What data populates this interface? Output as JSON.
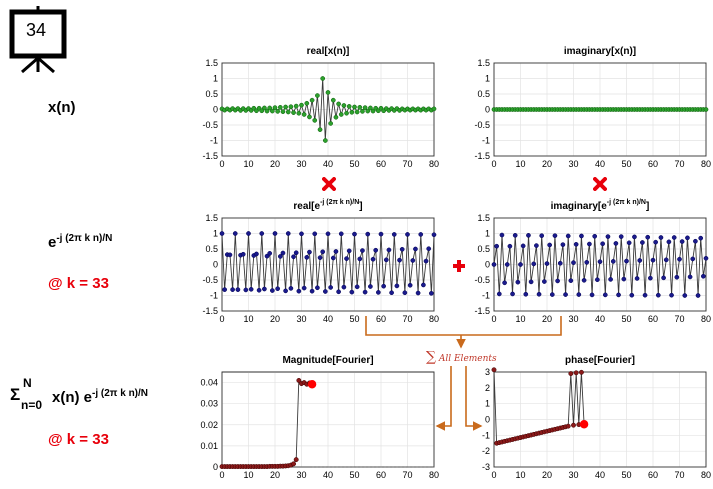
{
  "slide": {
    "number": "34"
  },
  "labels": {
    "xn": "x(n)",
    "kernel_base": "e",
    "kernel_sup": "-j (2π k n)/N",
    "k_value_1": "@ k = 33",
    "sum_sigma": "Σ",
    "sum_top": "N",
    "sum_bottom": "n=0",
    "sum_body": "x(n) e",
    "sum_sup": "-j (2π k n)/N",
    "k_value_2": "@ k = 33",
    "all_elements": "All Elements"
  },
  "colors": {
    "green_marker": "#2ca02c",
    "blue_marker": "#1a1a8c",
    "dark_red_marker": "#8b1a1a",
    "highlight": "#ff0000",
    "arrow": "#c96a1c",
    "operator_red": "#e8000b"
  },
  "icons": {
    "multiply": "x-mark-icon",
    "plus": "plus-icon",
    "slide": "presentation-board-icon"
  },
  "chart_data": [
    {
      "id": "real_x",
      "type": "line",
      "title": "real[x(n)]",
      "xlim": [
        0,
        80
      ],
      "ylim": [
        -1.5,
        1.5
      ],
      "xticks": [
        "0",
        "10",
        "20",
        "30",
        "40",
        "50",
        "60",
        "70",
        "80"
      ],
      "yticks": [
        "1.5",
        "1",
        "0.5",
        "0",
        "-0.5",
        "-1",
        "-1.5"
      ],
      "marker": "green",
      "x": [
        0,
        1,
        2,
        3,
        4,
        5,
        6,
        7,
        8,
        9,
        10,
        11,
        12,
        13,
        14,
        15,
        16,
        17,
        18,
        19,
        20,
        21,
        22,
        23,
        24,
        25,
        26,
        27,
        28,
        29,
        30,
        31,
        32,
        33,
        34,
        35,
        36,
        37,
        38,
        39,
        40,
        41,
        42,
        43,
        44,
        45,
        46,
        47,
        48,
        49,
        50,
        51,
        52,
        53,
        54,
        55,
        56,
        57,
        58,
        59,
        60,
        61,
        62,
        63,
        64,
        65,
        66,
        67,
        68,
        69,
        70,
        71,
        72,
        73,
        74,
        75,
        76,
        77,
        78,
        79,
        80
      ],
      "y": [
        0.02,
        -0.02,
        0.02,
        -0.02,
        0.03,
        -0.02,
        0.03,
        -0.03,
        0.03,
        -0.03,
        0.03,
        -0.03,
        0.04,
        -0.04,
        0.04,
        -0.04,
        0.05,
        -0.05,
        0.05,
        -0.05,
        0.06,
        -0.06,
        0.07,
        -0.07,
        0.08,
        -0.08,
        0.09,
        -0.1,
        0.11,
        -0.12,
        0.14,
        -0.16,
        0.2,
        -0.24,
        0.3,
        -0.35,
        0.45,
        -0.65,
        1.0,
        -1.0,
        0.55,
        -0.45,
        0.3,
        -0.25,
        0.18,
        -0.16,
        0.13,
        -0.12,
        0.1,
        -0.09,
        0.08,
        -0.08,
        0.07,
        -0.06,
        0.06,
        -0.05,
        0.05,
        -0.05,
        0.04,
        -0.04,
        0.04,
        -0.04,
        0.03,
        -0.03,
        0.03,
        -0.03,
        0.03,
        -0.03,
        0.02,
        -0.02,
        0.02,
        -0.02,
        0.02,
        -0.02,
        0.02,
        -0.02,
        0.02,
        -0.02,
        0.02,
        -0.02,
        0.02
      ]
    },
    {
      "id": "imag_x",
      "type": "line",
      "title": "imaginary[x(n)]",
      "xlim": [
        0,
        80
      ],
      "ylim": [
        -1.5,
        1.5
      ],
      "xticks": [
        "0",
        "10",
        "20",
        "30",
        "40",
        "50",
        "60",
        "70",
        "80"
      ],
      "yticks": [
        "1.5",
        "1",
        "0.5",
        "0",
        "-0.5",
        "-1",
        "-1.5"
      ],
      "marker": "green",
      "x": [
        0,
        1,
        2,
        3,
        4,
        5,
        6,
        7,
        8,
        9,
        10,
        11,
        12,
        13,
        14,
        15,
        16,
        17,
        18,
        19,
        20,
        21,
        22,
        23,
        24,
        25,
        26,
        27,
        28,
        29,
        30,
        31,
        32,
        33,
        34,
        35,
        36,
        37,
        38,
        39,
        40,
        41,
        42,
        43,
        44,
        45,
        46,
        47,
        48,
        49,
        50,
        51,
        52,
        53,
        54,
        55,
        56,
        57,
        58,
        59,
        60,
        61,
        62,
        63,
        64,
        65,
        66,
        67,
        68,
        69,
        70,
        71,
        72,
        73,
        74,
        75,
        76,
        77,
        78,
        79,
        80
      ],
      "y": [
        0,
        0,
        0,
        0,
        0,
        0,
        0,
        0,
        0,
        0,
        0,
        0,
        0,
        0,
        0,
        0,
        0,
        0,
        0,
        0,
        0,
        0,
        0,
        0,
        0,
        0,
        0,
        0,
        0,
        0,
        0,
        0,
        0,
        0,
        0,
        0,
        0,
        0,
        0,
        0,
        0,
        0,
        0,
        0,
        0,
        0,
        0,
        0,
        0,
        0,
        0,
        0,
        0,
        0,
        0,
        0,
        0,
        0,
        0,
        0,
        0,
        0,
        0,
        0,
        0,
        0,
        0,
        0,
        0,
        0,
        0,
        0,
        0,
        0,
        0,
        0,
        0,
        0,
        0,
        0,
        0
      ]
    },
    {
      "id": "real_kernel",
      "type": "line",
      "title_base": "real[e",
      "title_sup": "-j (2π k n)/N",
      "title_end": "]",
      "xlim": [
        0,
        80
      ],
      "ylim": [
        -1.5,
        1.5
      ],
      "xticks": [
        "0",
        "10",
        "20",
        "30",
        "40",
        "50",
        "60",
        "70",
        "80"
      ],
      "yticks": [
        "1.5",
        "1",
        "0.5",
        "0",
        "-0.5",
        "-1",
        "-1.5"
      ],
      "marker": "blue",
      "x": [
        0,
        1,
        2,
        3,
        4,
        5,
        6,
        7,
        8,
        9,
        10,
        11,
        12,
        13,
        14,
        15,
        16,
        17,
        18,
        19,
        20,
        21,
        22,
        23,
        24,
        25,
        26,
        27,
        28,
        29,
        30,
        31,
        32,
        33,
        34,
        35,
        36,
        37,
        38,
        39,
        40,
        41,
        42,
        43,
        44,
        45,
        46,
        47,
        48,
        49,
        50,
        51,
        52,
        53,
        54,
        55,
        56,
        57,
        58,
        59,
        60,
        61,
        62,
        63,
        64,
        65,
        66,
        67,
        68,
        69,
        70,
        71,
        72,
        73,
        74,
        75,
        76,
        77,
        78,
        79,
        80
      ],
      "y": [
        1,
        -0.81,
        0.32,
        0.31,
        -0.81,
        1,
        -0.81,
        0.3,
        0.33,
        -0.82,
        1,
        -0.8,
        0.29,
        0.34,
        -0.83,
        1,
        -0.79,
        0.27,
        0.36,
        -0.84,
        1,
        -0.78,
        0.26,
        0.37,
        -0.85,
        1,
        -0.77,
        0.25,
        0.38,
        -0.86,
        0.99,
        -0.76,
        0.23,
        0.4,
        -0.86,
        0.99,
        -0.75,
        0.22,
        0.41,
        -0.87,
        0.99,
        -0.74,
        0.21,
        0.42,
        -0.88,
        0.99,
        -0.73,
        0.19,
        0.44,
        -0.89,
        0.98,
        -0.72,
        0.18,
        0.45,
        -0.89,
        0.98,
        -0.71,
        0.17,
        0.46,
        -0.9,
        0.98,
        -0.7,
        0.15,
        0.47,
        -0.91,
        0.97,
        -0.69,
        0.14,
        0.49,
        -0.91,
        0.97,
        -0.67,
        0.13,
        0.5,
        -0.92,
        0.97,
        -0.66,
        0.11,
        0.51,
        -0.93,
        0.96
      ]
    },
    {
      "id": "imag_kernel",
      "type": "line",
      "title_base": "imaginary[e",
      "title_sup": "-j (2π k n)/N",
      "title_end": "]",
      "xlim": [
        0,
        80
      ],
      "ylim": [
        -1.5,
        1.5
      ],
      "xticks": [
        "0",
        "10",
        "20",
        "30",
        "40",
        "50",
        "60",
        "70",
        "80"
      ],
      "yticks": [
        "1.5",
        "1",
        "0.5",
        "0",
        "-0.5",
        "-1",
        "-1.5"
      ],
      "marker": "blue",
      "x": [
        0,
        1,
        2,
        3,
        4,
        5,
        6,
        7,
        8,
        9,
        10,
        11,
        12,
        13,
        14,
        15,
        16,
        17,
        18,
        19,
        20,
        21,
        22,
        23,
        24,
        25,
        26,
        27,
        28,
        29,
        30,
        31,
        32,
        33,
        34,
        35,
        36,
        37,
        38,
        39,
        40,
        41,
        42,
        43,
        44,
        45,
        46,
        47,
        48,
        49,
        50,
        51,
        52,
        53,
        54,
        55,
        56,
        57,
        58,
        59,
        60,
        61,
        62,
        63,
        64,
        65,
        66,
        67,
        68,
        69,
        70,
        71,
        72,
        73,
        74,
        75,
        76,
        77,
        78,
        79,
        80
      ],
      "y": [
        0,
        0.59,
        -0.95,
        0.95,
        -0.59,
        0,
        0.59,
        -0.95,
        0.94,
        -0.57,
        0,
        0.6,
        -0.96,
        0.94,
        -0.56,
        0.02,
        0.61,
        -0.96,
        0.93,
        -0.55,
        0.03,
        0.63,
        -0.97,
        0.93,
        -0.53,
        0.04,
        0.64,
        -0.97,
        0.92,
        -0.52,
        0.06,
        0.65,
        -0.97,
        0.92,
        -0.51,
        0.07,
        0.66,
        -0.98,
        0.91,
        -0.49,
        0.09,
        0.67,
        -0.98,
        0.9,
        -0.48,
        0.1,
        0.68,
        -0.98,
        0.9,
        -0.47,
        0.11,
        0.7,
        -0.99,
        0.89,
        -0.45,
        0.13,
        0.71,
        -0.99,
        0.88,
        -0.44,
        0.14,
        0.72,
        -0.99,
        0.87,
        -0.43,
        0.15,
        0.73,
        -0.99,
        0.87,
        -0.41,
        0.17,
        0.74,
        -1,
        0.86,
        -0.4,
        0.18,
        0.75,
        -1,
        0.85,
        -0.38,
        0.2
      ]
    },
    {
      "id": "magnitude",
      "type": "line",
      "title": "Magnitude[Fourier]",
      "xlim": [
        0,
        80
      ],
      "ylim": [
        0,
        0.045
      ],
      "xticks": [
        "0",
        "10",
        "20",
        "30",
        "40",
        "50",
        "60",
        "70",
        "80"
      ],
      "yticks": [
        "0.04",
        "0.03",
        "0.02",
        "0.01",
        "0"
      ],
      "ytick_values": [
        0.04,
        0.03,
        0.02,
        0.01,
        0
      ],
      "marker": "darkred",
      "highlight": {
        "x": 34,
        "y": 0.0392
      },
      "x": [
        0,
        1,
        2,
        3,
        4,
        5,
        6,
        7,
        8,
        9,
        10,
        11,
        12,
        13,
        14,
        15,
        16,
        17,
        18,
        19,
        20,
        21,
        22,
        23,
        24,
        25,
        26,
        27,
        28,
        29,
        30,
        31,
        32,
        33,
        34
      ],
      "y": [
        0.0002,
        0.0002,
        0.0002,
        0.0002,
        0.0002,
        0.0002,
        0.0002,
        0.0002,
        0.0002,
        0.0002,
        0.0002,
        0.0002,
        0.0002,
        0.0002,
        0.0002,
        0.0002,
        0.0002,
        0.0002,
        0.0003,
        0.0003,
        0.0003,
        0.0003,
        0.0004,
        0.0004,
        0.0005,
        0.0006,
        0.0009,
        0.0015,
        0.0035,
        0.041,
        0.0395,
        0.04,
        0.0392,
        0.0398,
        0.0392
      ]
    },
    {
      "id": "phase",
      "type": "line",
      "title": "phase[Fourier]",
      "xlim": [
        0,
        80
      ],
      "ylim": [
        -3,
        3
      ],
      "xticks": [
        "0",
        "10",
        "20",
        "30",
        "40",
        "50",
        "60",
        "70",
        "80"
      ],
      "yticks": [
        "3",
        "2",
        "1",
        "0",
        "-1",
        "-2",
        "-3"
      ],
      "marker": "darkred",
      "highlight": {
        "x": 34,
        "y": -0.3
      },
      "x": [
        0,
        1,
        2,
        3,
        4,
        5,
        6,
        7,
        8,
        9,
        10,
        11,
        12,
        13,
        14,
        15,
        16,
        17,
        18,
        19,
        20,
        21,
        22,
        23,
        24,
        25,
        26,
        27,
        28,
        29,
        30,
        31,
        32,
        33,
        34
      ],
      "y": [
        3.14,
        -1.5,
        -1.46,
        -1.42,
        -1.38,
        -1.34,
        -1.3,
        -1.26,
        -1.22,
        -1.18,
        -1.14,
        -1.1,
        -1.06,
        -1.02,
        -0.98,
        -0.94,
        -0.9,
        -0.86,
        -0.82,
        -0.78,
        -0.74,
        -0.7,
        -0.66,
        -0.62,
        -0.58,
        -0.54,
        -0.5,
        -0.46,
        -0.42,
        2.9,
        -0.36,
        2.95,
        -0.32,
        2.98,
        -0.3
      ]
    }
  ]
}
